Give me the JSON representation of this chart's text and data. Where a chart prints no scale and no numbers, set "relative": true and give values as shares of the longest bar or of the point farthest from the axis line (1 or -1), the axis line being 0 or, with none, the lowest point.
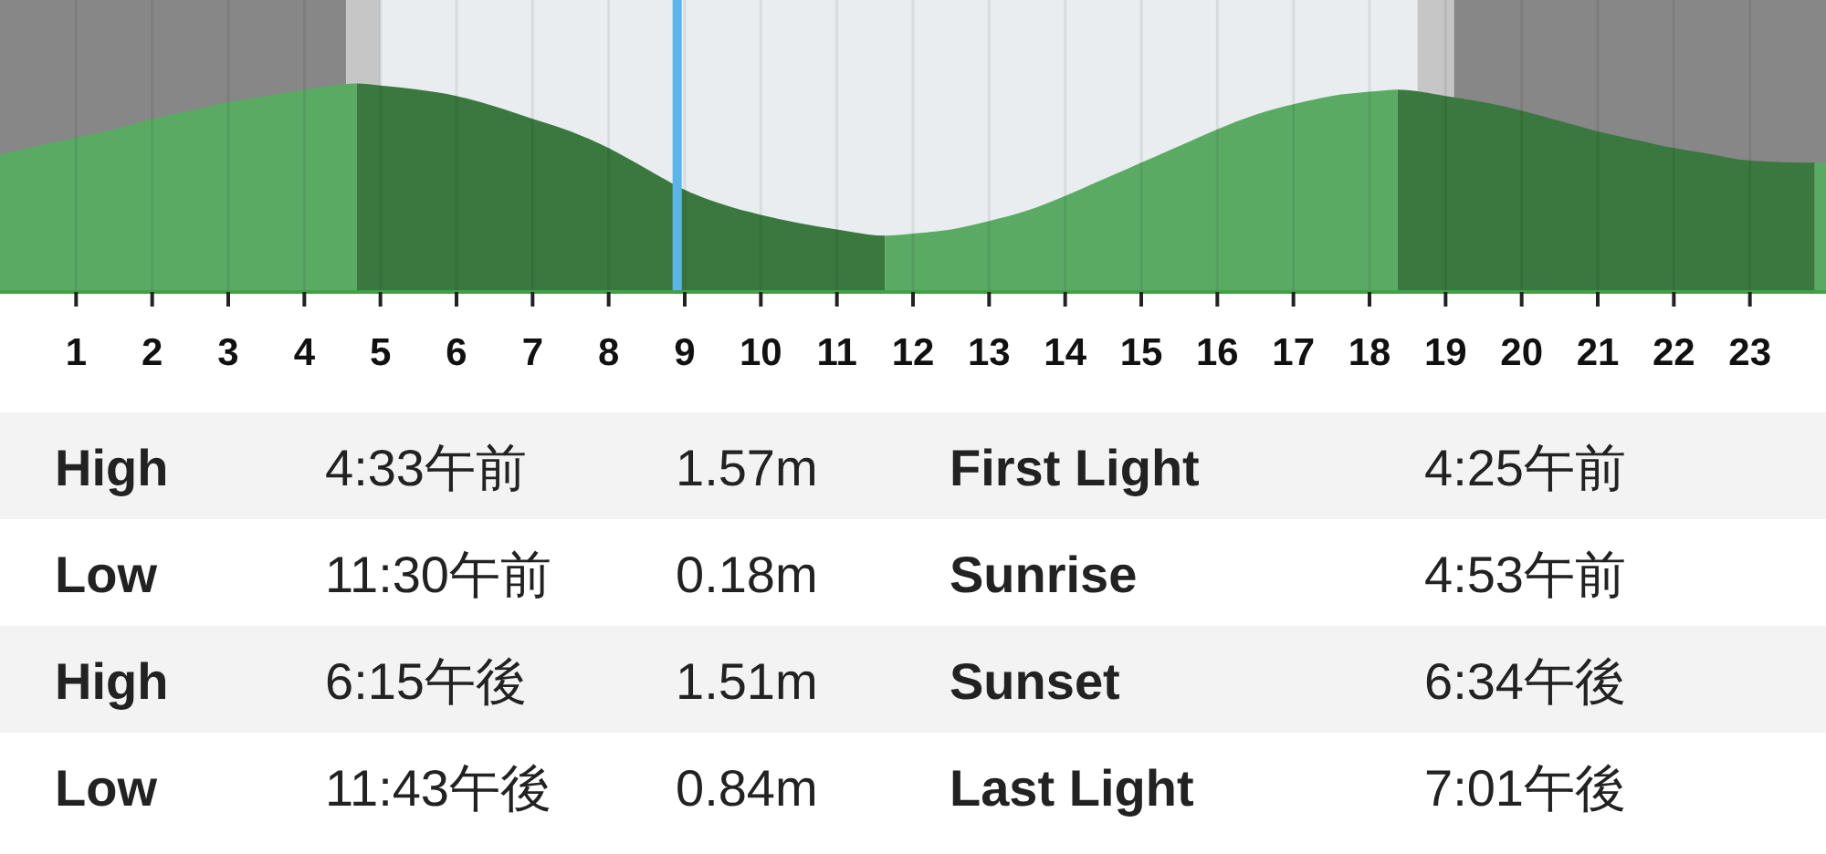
{
  "chart_data": [
    {
      "type": "area",
      "relative": true,
      "xlim": [
        0,
        24
      ],
      "xticks": [
        1,
        2,
        3,
        4,
        5,
        6,
        7,
        8,
        9,
        10,
        11,
        12,
        13,
        14,
        15,
        16,
        17,
        18,
        19,
        20,
        21,
        22,
        23
      ],
      "grid": "x",
      "tick_labels": "x",
      "bands": [
        {
          "axis": "x",
          "from": 0,
          "to": 4.55,
          "color": "#878787"
        },
        {
          "axis": "x",
          "from": 4.55,
          "to": 5.0,
          "color": "#c6c6c6"
        },
        {
          "axis": "x",
          "from": 5.0,
          "to": 18.63,
          "color": "#e9edef"
        },
        {
          "axis": "x",
          "from": 18.63,
          "to": 19.11,
          "color": "#c6c6c6"
        },
        {
          "axis": "x",
          "from": 19.11,
          "to": 24,
          "color": "#878787"
        }
      ],
      "ref_lines": [
        {
          "axis": "x",
          "value": 8.9,
          "color": "#5bb5e8"
        }
      ],
      "series": [
        {
          "color": "#5aaa64",
          "x": [
            0,
            0.5,
            1,
            1.5,
            2,
            2.5,
            3,
            3.5,
            4,
            4.69
          ],
          "values": [
            0.66,
            0.7,
            0.74,
            0.78,
            0.83,
            0.87,
            0.91,
            0.94,
            0.97,
            1.0
          ]
        },
        {
          "color": "#3a783f",
          "x": [
            4.69,
            5,
            5.5,
            6,
            6.5,
            7,
            7.5,
            8,
            8.5,
            9,
            9.5,
            10,
            10.5,
            11,
            11.63
          ],
          "values": [
            1.0,
            0.99,
            0.97,
            0.94,
            0.89,
            0.83,
            0.77,
            0.69,
            0.59,
            0.49,
            0.42,
            0.37,
            0.33,
            0.3,
            0.27
          ]
        },
        {
          "color": "#5aaa64",
          "x": [
            11.63,
            12,
            12.5,
            13,
            13.5,
            14,
            14.5,
            15,
            15.5,
            16,
            16.5,
            17,
            17.5,
            18,
            18.37
          ],
          "values": [
            0.27,
            0.28,
            0.3,
            0.34,
            0.39,
            0.46,
            0.54,
            0.62,
            0.7,
            0.78,
            0.85,
            0.9,
            0.94,
            0.96,
            0.97
          ]
        },
        {
          "color": "#3a783f",
          "x": [
            18.37,
            19,
            19.5,
            20,
            20.5,
            21,
            21.5,
            22,
            22.5,
            23,
            23.85
          ],
          "values": [
            0.97,
            0.94,
            0.91,
            0.87,
            0.82,
            0.77,
            0.73,
            0.69,
            0.66,
            0.63,
            0.62
          ]
        },
        {
          "color": "#5aaa64",
          "x": [
            23.85,
            24
          ],
          "values": [
            0.62,
            0.62
          ]
        }
      ]
    },
    {
      "type": "other",
      "annotations": [
        "High",
        "4:33午前",
        "1.57m",
        "First Light",
        "4:25午前",
        "Low",
        "11:30午前",
        "0.18m",
        "Sunrise",
        "4:53午前",
        "High",
        "6:15午後",
        "1.51m",
        "Sunset",
        "6:34午後",
        "Low",
        "11:43午後",
        "0.84m",
        "Last Light",
        "7:01午後"
      ]
    }
  ]
}
